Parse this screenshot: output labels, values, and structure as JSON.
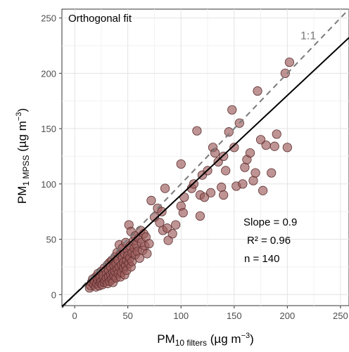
{
  "chart_data": {
    "type": "scatter",
    "title": "Orthogonal fit",
    "xlabel": {
      "main": "PM",
      "sub": "10 filters",
      "unit": " (µg m",
      "exp": "−3",
      "close": ")"
    },
    "ylabel": {
      "main": "PM",
      "sub": "1 MPSS",
      "unit": " (µg m",
      "exp": "−3",
      "close": ")"
    },
    "xlim": [
      -12,
      258
    ],
    "ylim": [
      -10,
      258
    ],
    "xticks": [
      0,
      50,
      100,
      150,
      200,
      250
    ],
    "yticks": [
      0,
      50,
      100,
      150,
      200,
      250
    ],
    "grid": true,
    "reference_line": {
      "label": "1:1",
      "slope": 1,
      "intercept": 0
    },
    "fit_line": {
      "slope": 0.9,
      "intercept": 0
    },
    "stats": [
      {
        "label": "Slope =  0.9"
      },
      {
        "label": "R² =  0.96"
      },
      {
        "label": "n =  140"
      }
    ],
    "point_color": "#9c5a5a",
    "points": [
      [
        14,
        6
      ],
      [
        15,
        8
      ],
      [
        16,
        11
      ],
      [
        17,
        14
      ],
      [
        18,
        9
      ],
      [
        19,
        12
      ],
      [
        20,
        16
      ],
      [
        20,
        7
      ],
      [
        21,
        10
      ],
      [
        22,
        13
      ],
      [
        22,
        19
      ],
      [
        23,
        8
      ],
      [
        24,
        11
      ],
      [
        24,
        15
      ],
      [
        25,
        21
      ],
      [
        25,
        12
      ],
      [
        26,
        9
      ],
      [
        27,
        14
      ],
      [
        27,
        17
      ],
      [
        28,
        24
      ],
      [
        28,
        11
      ],
      [
        29,
        13
      ],
      [
        30,
        19
      ],
      [
        30,
        15
      ],
      [
        31,
        27
      ],
      [
        31,
        10
      ],
      [
        32,
        22
      ],
      [
        32,
        16
      ],
      [
        33,
        12
      ],
      [
        33,
        29
      ],
      [
        34,
        18
      ],
      [
        34,
        25
      ],
      [
        35,
        14
      ],
      [
        35,
        31
      ],
      [
        36,
        20
      ],
      [
        36,
        11
      ],
      [
        37,
        26
      ],
      [
        37,
        17
      ],
      [
        38,
        34
      ],
      [
        38,
        21
      ],
      [
        39,
        15
      ],
      [
        39,
        28
      ],
      [
        40,
        38
      ],
      [
        40,
        23
      ],
      [
        41,
        19
      ],
      [
        41,
        31
      ],
      [
        42,
        45
      ],
      [
        42,
        25
      ],
      [
        43,
        16
      ],
      [
        43,
        36
      ],
      [
        44,
        27
      ],
      [
        44,
        20
      ],
      [
        45,
        33
      ],
      [
        45,
        42
      ],
      [
        46,
        24
      ],
      [
        46,
        29
      ],
      [
        47,
        37
      ],
      [
        47,
        18
      ],
      [
        48,
        26
      ],
      [
        48,
        47
      ],
      [
        49,
        31
      ],
      [
        49,
        22
      ],
      [
        50,
        40
      ],
      [
        50,
        35
      ],
      [
        51,
        28
      ],
      [
        51,
        63
      ],
      [
        52,
        44
      ],
      [
        52,
        33
      ],
      [
        53,
        25
      ],
      [
        53,
        57
      ],
      [
        54,
        38
      ],
      [
        54,
        30
      ],
      [
        55,
        48
      ],
      [
        56,
        42
      ],
      [
        57,
        36
      ],
      [
        57,
        53
      ],
      [
        58,
        45
      ],
      [
        59,
        39
      ],
      [
        60,
        51
      ],
      [
        61,
        33
      ],
      [
        62,
        58
      ],
      [
        63,
        47
      ],
      [
        64,
        40
      ],
      [
        65,
        55
      ],
      [
        66,
        44
      ],
      [
        67,
        52
      ],
      [
        68,
        37
      ],
      [
        70,
        46
      ],
      [
        72,
        85
      ],
      [
        75,
        70
      ],
      [
        78,
        78
      ],
      [
        80,
        65
      ],
      [
        82,
        75
      ],
      [
        83,
        58
      ],
      [
        85,
        96
      ],
      [
        87,
        60
      ],
      [
        88,
        49
      ],
      [
        92,
        55
      ],
      [
        95,
        63
      ],
      [
        100,
        118
      ],
      [
        100,
        80
      ],
      [
        102,
        74
      ],
      [
        103,
        88
      ],
      [
        110,
        96
      ],
      [
        112,
        100
      ],
      [
        115,
        148
      ],
      [
        118,
        90
      ],
      [
        118,
        71
      ],
      [
        120,
        108
      ],
      [
        122,
        88
      ],
      [
        125,
        112
      ],
      [
        128,
        92
      ],
      [
        130,
        133
      ],
      [
        132,
        128
      ],
      [
        135,
        120
      ],
      [
        138,
        97
      ],
      [
        140,
        125
      ],
      [
        140,
        90
      ],
      [
        142,
        112
      ],
      [
        145,
        147
      ],
      [
        148,
        167
      ],
      [
        150,
        133
      ],
      [
        152,
        98
      ],
      [
        155,
        155
      ],
      [
        158,
        100
      ],
      [
        160,
        115
      ],
      [
        162,
        122
      ],
      [
        165,
        128
      ],
      [
        168,
        103
      ],
      [
        170,
        110
      ],
      [
        172,
        184
      ],
      [
        175,
        140
      ],
      [
        177,
        94
      ],
      [
        180,
        135
      ],
      [
        185,
        110
      ],
      [
        188,
        134
      ],
      [
        190,
        145
      ],
      [
        198,
        200
      ],
      [
        200,
        133
      ],
      [
        202,
        210
      ]
    ]
  }
}
